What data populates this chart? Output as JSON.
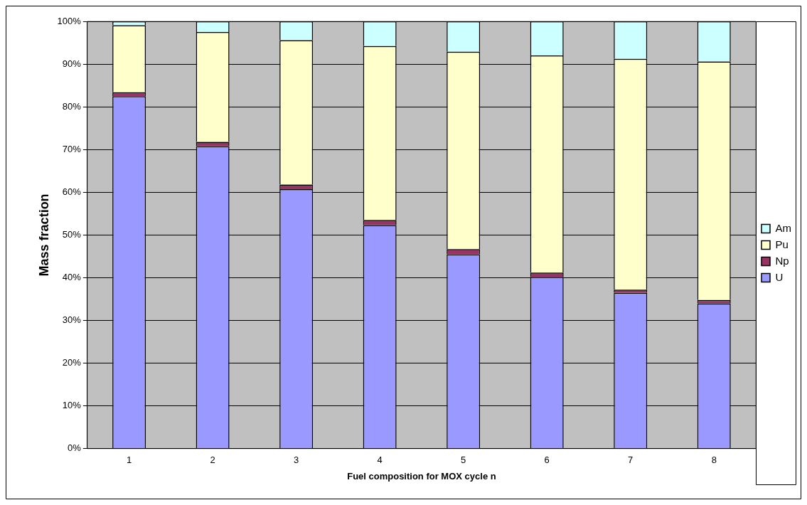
{
  "chart_data": {
    "type": "bar",
    "stacked": true,
    "xlabel": "Fuel composition for MOX cycle n",
    "ylabel": "Mass fraction",
    "categories": [
      "1",
      "2",
      "3",
      "4",
      "5",
      "6",
      "7",
      "8"
    ],
    "series": [
      {
        "name": "U",
        "color": "#9999ff",
        "values": [
          82.5,
          70.8,
          60.7,
          52.3,
          45.5,
          40.2,
          36.5,
          34.0
        ]
      },
      {
        "name": "Np",
        "color": "#993366",
        "values": [
          0.9,
          1.0,
          1.1,
          1.2,
          1.2,
          1.0,
          0.7,
          0.8
        ]
      },
      {
        "name": "Pu",
        "color": "#ffffcc",
        "values": [
          15.7,
          25.7,
          33.8,
          40.7,
          46.2,
          50.8,
          54.0,
          55.8
        ]
      },
      {
        "name": "Am",
        "color": "#ccffff",
        "values": [
          0.9,
          2.5,
          4.4,
          5.8,
          7.1,
          8.0,
          8.8,
          9.4
        ]
      }
    ],
    "ylim": [
      0,
      100
    ],
    "yticks": [
      {
        "value": 0,
        "label": "0%"
      },
      {
        "value": 10,
        "label": "10%"
      },
      {
        "value": 20,
        "label": "20%"
      },
      {
        "value": 30,
        "label": "30%"
      },
      {
        "value": 40,
        "label": "40%"
      },
      {
        "value": 50,
        "label": "50%"
      },
      {
        "value": 60,
        "label": "60%"
      },
      {
        "value": 70,
        "label": "70%"
      },
      {
        "value": 80,
        "label": "80%"
      },
      {
        "value": 90,
        "label": "90%"
      },
      {
        "value": 100,
        "label": "100%"
      }
    ],
    "grid": "y",
    "legend": "right"
  }
}
